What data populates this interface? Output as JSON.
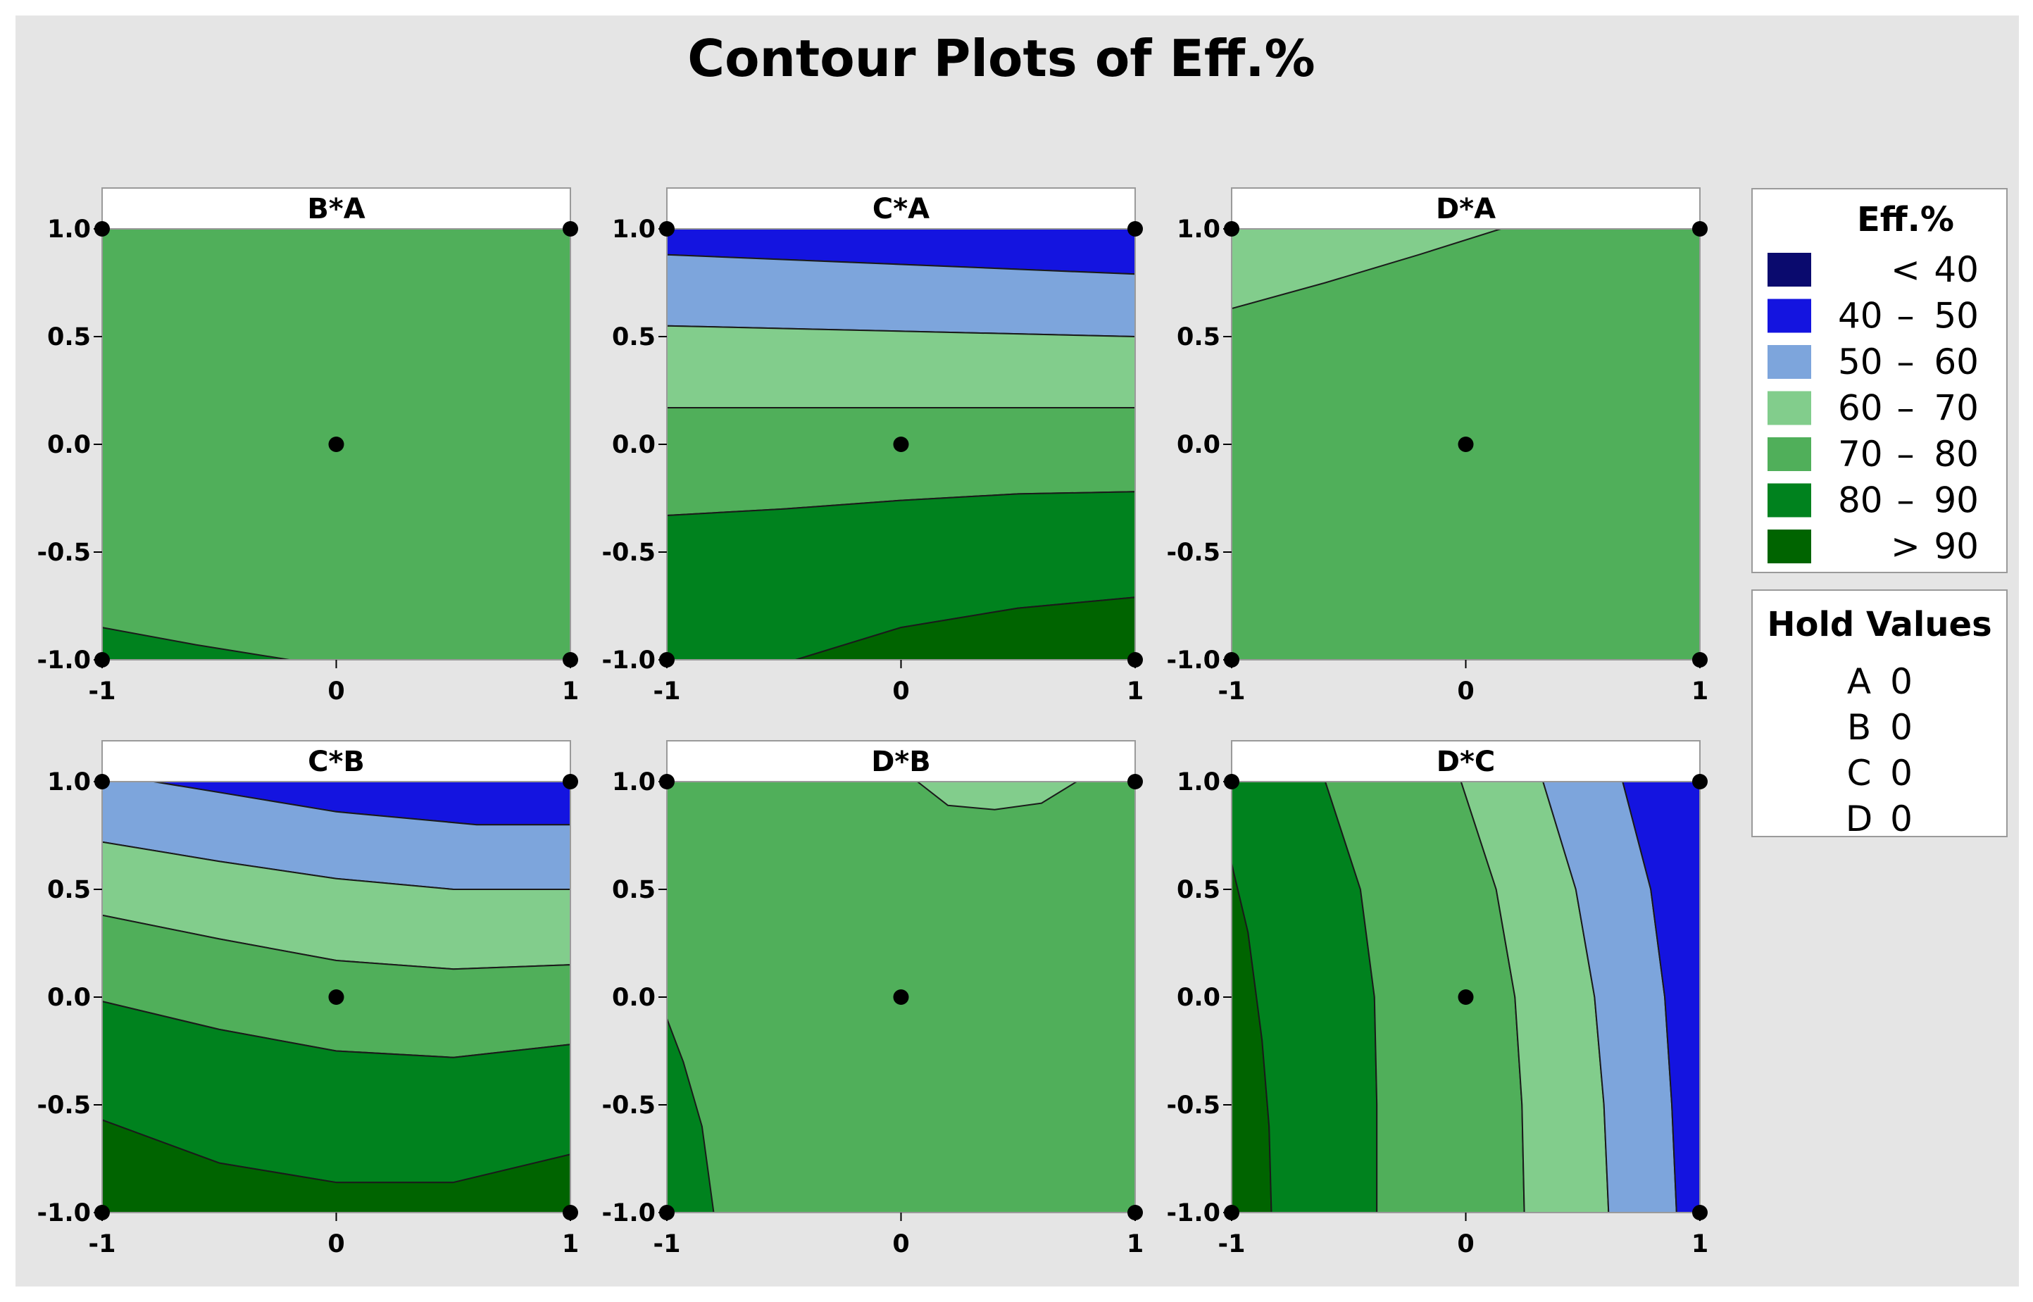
{
  "chart_data": {
    "type": "contour",
    "title": "Contour Plots of Eff.%",
    "legend": {
      "title": "Eff.%",
      "placement": "right",
      "levels": [
        {
          "label_left": "",
          "sep": "<",
          "label_right": "40",
          "color": "#0a0a6e"
        },
        {
          "label_left": "40",
          "sep": "–",
          "label_right": "50",
          "color": "#1414e0"
        },
        {
          "label_left": "50",
          "sep": "–",
          "label_right": "60",
          "color": "#7da5dc"
        },
        {
          "label_left": "60",
          "sep": "–",
          "label_right": "70",
          "color": "#82cd8c"
        },
        {
          "label_left": "70",
          "sep": "–",
          "label_right": "80",
          "color": "#50af5a"
        },
        {
          "label_left": "80",
          "sep": "–",
          "label_right": "90",
          "color": "#00821e"
        },
        {
          "label_left": "",
          "sep": ">",
          "label_right": "90",
          "color": "#006400"
        }
      ]
    },
    "hold_values": {
      "title": "Hold Values",
      "items": [
        {
          "factor": "A",
          "value": "0"
        },
        {
          "factor": "B",
          "value": "0"
        },
        {
          "factor": "C",
          "value": "0"
        },
        {
          "factor": "D",
          "value": "0"
        }
      ]
    },
    "x_ticks": [
      "-1",
      "0",
      "1"
    ],
    "y_ticks": [
      "1.0",
      "0.5",
      "0.0",
      "-0.5",
      "-1.0"
    ],
    "xlim": [
      -1,
      1
    ],
    "ylim": [
      -1,
      1
    ],
    "design_points": [
      [
        -1,
        -1
      ],
      [
        -1,
        1
      ],
      [
        1,
        -1
      ],
      [
        1,
        1
      ],
      [
        0,
        0
      ]
    ],
    "panels": [
      {
        "label": "B*A",
        "regions": [
          {
            "level": "70-80",
            "poly": [
              [
                -1,
                -1
              ],
              [
                1,
                -1
              ],
              [
                1,
                1
              ],
              [
                -1,
                1
              ]
            ]
          },
          {
            "level": "80-90",
            "poly": [
              [
                -1,
                -1
              ],
              [
                -0.2,
                -1
              ],
              [
                -0.6,
                -0.93
              ],
              [
                -1,
                -0.85
              ]
            ]
          }
        ]
      },
      {
        "label": "C*A",
        "regions": [
          {
            "level": "40-50",
            "poly": [
              [
                -1,
                0.88
              ],
              [
                1,
                0.79
              ],
              [
                1,
                1
              ],
              [
                -1,
                1
              ]
            ]
          },
          {
            "level": "50-60",
            "poly": [
              [
                -1,
                0.55
              ],
              [
                1,
                0.5
              ],
              [
                1,
                0.79
              ],
              [
                -1,
                0.88
              ]
            ]
          },
          {
            "level": "60-70",
            "poly": [
              [
                -1,
                0.17
              ],
              [
                1,
                0.17
              ],
              [
                1,
                0.5
              ],
              [
                -1,
                0.55
              ]
            ]
          },
          {
            "level": "70-80",
            "poly": [
              [
                -1,
                -0.33
              ],
              [
                -0.5,
                -0.3
              ],
              [
                0,
                -0.26
              ],
              [
                0.5,
                -0.23
              ],
              [
                1,
                -0.22
              ],
              [
                1,
                0.17
              ],
              [
                -1,
                0.17
              ]
            ]
          },
          {
            "level": "80-90",
            "poly": [
              [
                -1,
                -1
              ],
              [
                -0.45,
                -1
              ],
              [
                0,
                -0.85
              ],
              [
                0.5,
                -0.76
              ],
              [
                1,
                -0.71
              ],
              [
                1,
                -0.22
              ],
              [
                0.5,
                -0.23
              ],
              [
                0,
                -0.26
              ],
              [
                -0.5,
                -0.3
              ],
              [
                -1,
                -0.33
              ]
            ]
          },
          {
            "level": ">90",
            "poly": [
              [
                -0.45,
                -1
              ],
              [
                1,
                -1
              ],
              [
                1,
                -0.71
              ],
              [
                0.5,
                -0.76
              ],
              [
                0,
                -0.85
              ]
            ]
          }
        ]
      },
      {
        "label": "D*A",
        "regions": [
          {
            "level": "70-80",
            "poly": [
              [
                -1,
                -1
              ],
              [
                1,
                -1
              ],
              [
                1,
                1
              ],
              [
                -1,
                1
              ]
            ]
          },
          {
            "level": "60-70",
            "poly": [
              [
                -1,
                0.63
              ],
              [
                -0.6,
                0.75
              ],
              [
                -0.2,
                0.88
              ],
              [
                0.15,
                1
              ],
              [
                -1,
                1
              ]
            ]
          }
        ]
      },
      {
        "label": "C*B",
        "regions": [
          {
            "level": "40-50",
            "poly": [
              [
                -0.78,
                1
              ],
              [
                1,
                1
              ],
              [
                1,
                0.8
              ],
              [
                0.6,
                0.8
              ],
              [
                0,
                0.86
              ],
              [
                -0.5,
                0.95
              ]
            ]
          },
          {
            "level": "50-60",
            "poly": [
              [
                -1,
                0.72
              ],
              [
                -0.5,
                0.63
              ],
              [
                0,
                0.55
              ],
              [
                0.5,
                0.5
              ],
              [
                1,
                0.5
              ],
              [
                1,
                0.8
              ],
              [
                0.6,
                0.8
              ],
              [
                0,
                0.86
              ],
              [
                -0.5,
                0.95
              ],
              [
                -0.78,
                1
              ],
              [
                -1,
                1
              ]
            ]
          },
          {
            "level": "60-70",
            "poly": [
              [
                -1,
                0.38
              ],
              [
                -0.5,
                0.27
              ],
              [
                0,
                0.17
              ],
              [
                0.5,
                0.13
              ],
              [
                1,
                0.15
              ],
              [
                1,
                0.5
              ],
              [
                0.5,
                0.5
              ],
              [
                0,
                0.55
              ],
              [
                -0.5,
                0.63
              ],
              [
                -1,
                0.72
              ]
            ]
          },
          {
            "level": "70-80",
            "poly": [
              [
                -1,
                -0.02
              ],
              [
                -0.5,
                -0.15
              ],
              [
                0,
                -0.25
              ],
              [
                0.5,
                -0.28
              ],
              [
                1,
                -0.22
              ],
              [
                1,
                0.15
              ],
              [
                0.5,
                0.13
              ],
              [
                0,
                0.17
              ],
              [
                -0.5,
                0.27
              ],
              [
                -1,
                0.38
              ]
            ]
          },
          {
            "level": "80-90",
            "poly": [
              [
                -1,
                -0.57
              ],
              [
                -0.5,
                -0.77
              ],
              [
                0,
                -0.86
              ],
              [
                0.5,
                -0.86
              ],
              [
                1,
                -0.73
              ],
              [
                1,
                -0.22
              ],
              [
                0.5,
                -0.28
              ],
              [
                0,
                -0.25
              ],
              [
                -0.5,
                -0.15
              ],
              [
                -1,
                -0.02
              ]
            ]
          },
          {
            "level": ">90",
            "poly": [
              [
                -1,
                -1
              ],
              [
                1,
                -1
              ],
              [
                1,
                -0.73
              ],
              [
                0.5,
                -0.86
              ],
              [
                0,
                -0.86
              ],
              [
                -0.5,
                -0.77
              ],
              [
                -1,
                -0.57
              ]
            ]
          }
        ]
      },
      {
        "label": "D*B",
        "regions": [
          {
            "level": "70-80",
            "poly": [
              [
                -1,
                -1
              ],
              [
                1,
                -1
              ],
              [
                1,
                1
              ],
              [
                -1,
                1
              ]
            ]
          },
          {
            "level": "60-70",
            "poly": [
              [
                0.07,
                1
              ],
              [
                0.2,
                0.89
              ],
              [
                0.4,
                0.87
              ],
              [
                0.6,
                0.9
              ],
              [
                0.75,
                1
              ]
            ]
          },
          {
            "level": "80-90",
            "poly": [
              [
                -1,
                -1
              ],
              [
                -0.8,
                -1
              ],
              [
                -0.85,
                -0.6
              ],
              [
                -0.93,
                -0.3
              ],
              [
                -1,
                -0.1
              ]
            ]
          }
        ]
      },
      {
        "label": "D*C",
        "regions": [
          {
            "level": ">90",
            "poly": [
              [
                -1,
                0.62
              ],
              [
                -0.93,
                0.3
              ],
              [
                -0.87,
                -0.2
              ],
              [
                -0.84,
                -0.6
              ],
              [
                -0.83,
                -1
              ],
              [
                -1,
                -1
              ]
            ]
          },
          {
            "level": "80-90",
            "poly": [
              [
                -1,
                1
              ],
              [
                -0.6,
                1
              ],
              [
                -0.45,
                0.5
              ],
              [
                -0.39,
                0
              ],
              [
                -0.38,
                -0.5
              ],
              [
                -0.38,
                -1
              ],
              [
                -0.83,
                -1
              ],
              [
                -0.84,
                -0.6
              ],
              [
                -0.87,
                -0.2
              ],
              [
                -0.93,
                0.3
              ],
              [
                -1,
                0.62
              ]
            ]
          },
          {
            "level": "70-80",
            "poly": [
              [
                -0.6,
                1
              ],
              [
                -0.02,
                1
              ],
              [
                0.13,
                0.5
              ],
              [
                0.21,
                0
              ],
              [
                0.24,
                -0.5
              ],
              [
                0.25,
                -1
              ],
              [
                -0.38,
                -1
              ],
              [
                -0.38,
                -0.5
              ],
              [
                -0.39,
                0
              ],
              [
                -0.45,
                0.5
              ]
            ]
          },
          {
            "level": "60-70",
            "poly": [
              [
                -0.02,
                1
              ],
              [
                0.33,
                1
              ],
              [
                0.47,
                0.5
              ],
              [
                0.55,
                0
              ],
              [
                0.59,
                -0.5
              ],
              [
                0.61,
                -1
              ],
              [
                0.25,
                -1
              ],
              [
                0.24,
                -0.5
              ],
              [
                0.21,
                0
              ],
              [
                0.13,
                0.5
              ]
            ]
          },
          {
            "level": "50-60",
            "poly": [
              [
                0.33,
                1
              ],
              [
                0.67,
                1
              ],
              [
                0.79,
                0.5
              ],
              [
                0.85,
                0
              ],
              [
                0.88,
                -0.5
              ],
              [
                0.9,
                -1
              ],
              [
                0.61,
                -1
              ],
              [
                0.59,
                -0.5
              ],
              [
                0.55,
                0
              ],
              [
                0.47,
                0.5
              ]
            ]
          },
          {
            "level": "40-50",
            "poly": [
              [
                0.67,
                1
              ],
              [
                1,
                1
              ],
              [
                1,
                -1
              ],
              [
                0.9,
                -1
              ],
              [
                0.88,
                -0.5
              ],
              [
                0.85,
                0
              ],
              [
                0.79,
                0.5
              ]
            ]
          }
        ]
      }
    ]
  }
}
